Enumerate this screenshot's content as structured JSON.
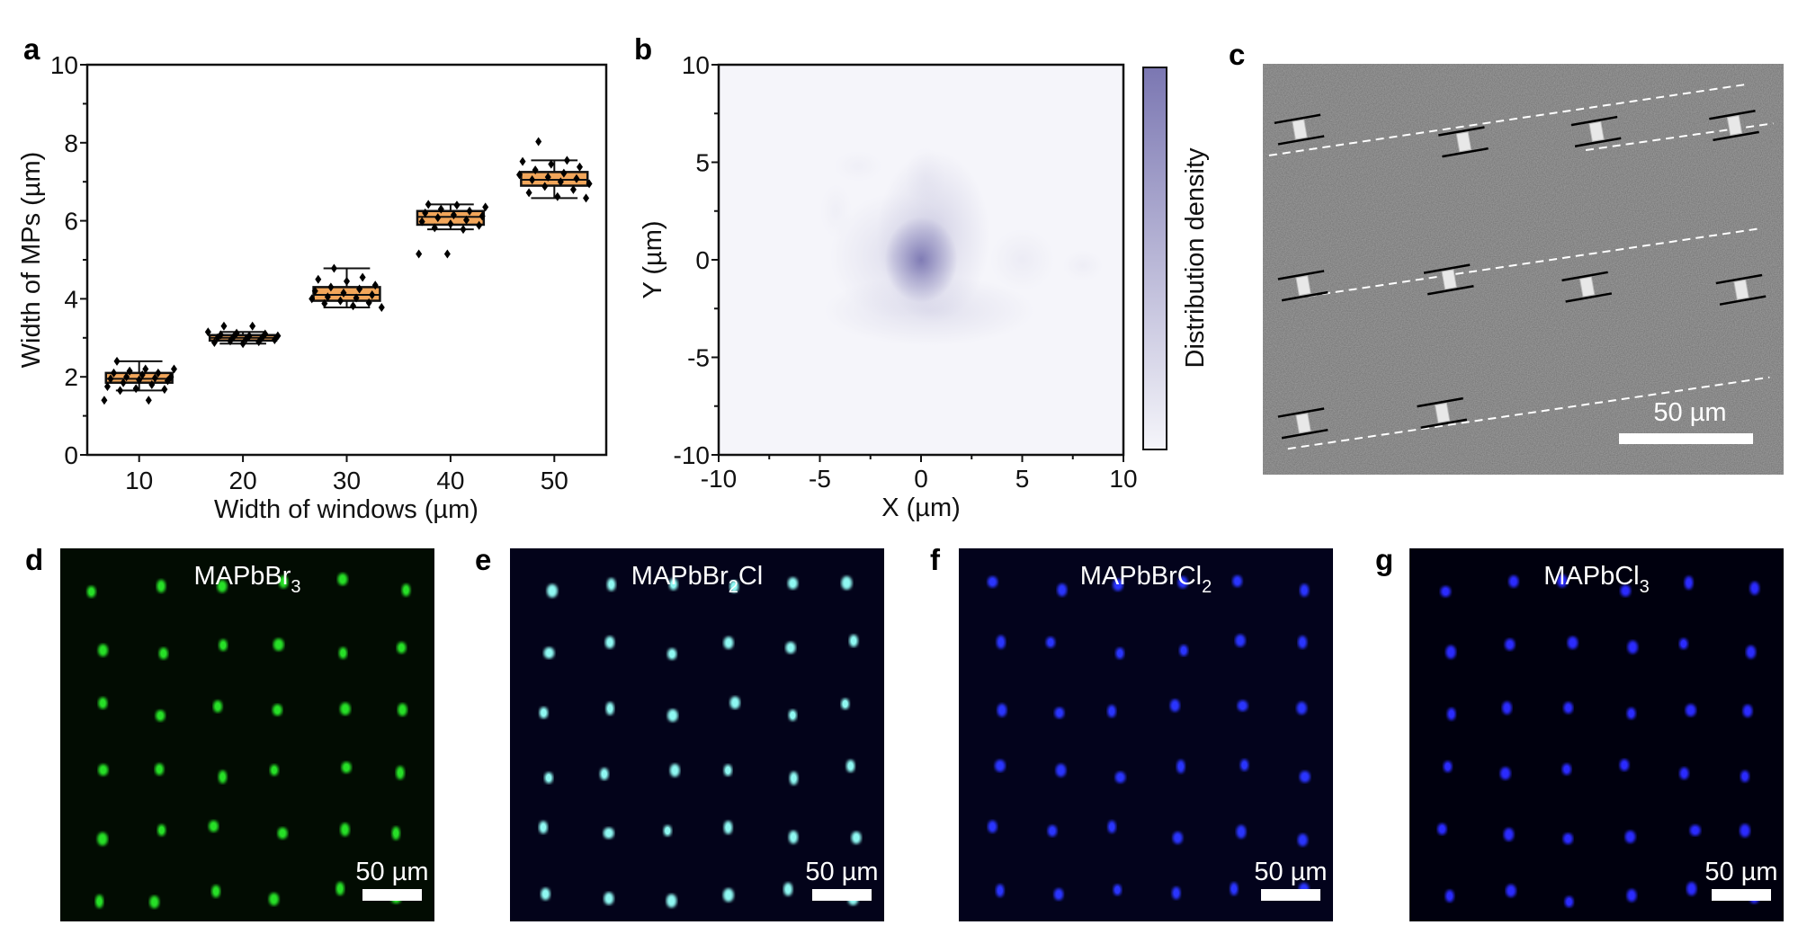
{
  "panels": {
    "a": {
      "letter": "a"
    },
    "b": {
      "letter": "b"
    },
    "c": {
      "letter": "c",
      "scale_bar": "50 µm"
    },
    "d": {
      "letter": "d",
      "label": {
        "base": "MAPbBr",
        "sub": "3",
        "tail": ""
      },
      "scale_bar": "50 µm",
      "bg": "#020c02",
      "dot": "#27e027"
    },
    "e": {
      "letter": "e",
      "label": {
        "base": "MAPbBr",
        "sub": "2",
        "tail": "Cl"
      },
      "scale_bar": "50 µm",
      "bg": "#03031a",
      "dot": "#8ff8f2"
    },
    "f": {
      "letter": "f",
      "label": {
        "base": "MAPbBrCl",
        "sub": "2",
        "tail": ""
      },
      "scale_bar": "50 µm",
      "bg": "#03031c",
      "dot": "#2a35ff"
    },
    "g": {
      "letter": "g",
      "label": {
        "base": "MAPbCl",
        "sub": "3",
        "tail": ""
      },
      "scale_bar": "50 µm",
      "bg": "#00000e",
      "dot": "#2b2bff"
    }
  },
  "chart_data": [
    {
      "type": "box",
      "xlabel": "Width of windows (µm)",
      "ylabel": "Width of MPs (µm)",
      "xlim": [
        5,
        55
      ],
      "ylim": [
        0,
        10
      ],
      "xticks": [
        "10",
        "20",
        "30",
        "40",
        "50"
      ],
      "yticks": [
        "0",
        "2",
        "4",
        "6",
        "8",
        "10"
      ],
      "box_color": "#f2a65a",
      "categories": [
        10,
        20,
        30,
        40,
        50
      ],
      "boxes": [
        {
          "x": 10,
          "whisker_low": 1.65,
          "q1": 1.85,
          "median": 1.95,
          "q3": 2.1,
          "whisker_high": 2.4,
          "points": [
            1.4,
            1.4,
            1.65,
            1.68,
            1.7,
            1.75,
            1.8,
            1.85,
            1.9,
            1.92,
            1.95,
            1.97,
            2.0,
            2.0,
            2.05,
            2.1,
            2.1,
            2.15,
            2.2,
            2.2,
            2.4
          ]
        },
        {
          "x": 20,
          "whisker_low": 2.85,
          "q1": 2.93,
          "median": 3.0,
          "q3": 3.07,
          "whisker_high": 3.15,
          "points": [
            2.85,
            2.88,
            2.9,
            2.92,
            2.95,
            2.97,
            3.0,
            3.0,
            3.02,
            3.05,
            3.05,
            3.08,
            3.1,
            3.12,
            3.15,
            3.3,
            3.3
          ]
        },
        {
          "x": 30,
          "whisker_low": 3.78,
          "q1": 3.95,
          "median": 4.1,
          "q3": 4.3,
          "whisker_high": 4.78,
          "points": [
            3.78,
            3.82,
            3.88,
            3.9,
            3.95,
            4.0,
            4.02,
            4.05,
            4.1,
            4.15,
            4.2,
            4.25,
            4.3,
            4.35,
            4.45,
            4.5,
            4.55,
            4.78
          ]
        },
        {
          "x": 40,
          "whisker_low": 5.78,
          "q1": 5.9,
          "median": 6.1,
          "q3": 6.25,
          "whisker_high": 6.42,
          "points": [
            5.15,
            5.15,
            5.78,
            5.82,
            5.88,
            5.92,
            5.98,
            6.02,
            6.08,
            6.12,
            6.15,
            6.2,
            6.25,
            6.3,
            6.35,
            6.4,
            6.42
          ]
        },
        {
          "x": 50,
          "whisker_low": 6.58,
          "q1": 6.9,
          "median": 7.05,
          "q3": 7.25,
          "whisker_high": 7.55,
          "points": [
            6.58,
            6.62,
            6.72,
            6.8,
            6.88,
            6.95,
            7.0,
            7.05,
            7.08,
            7.12,
            7.18,
            7.22,
            7.3,
            7.38,
            7.45,
            7.52,
            7.55,
            8.03
          ]
        }
      ]
    },
    {
      "type": "heatmap",
      "xlabel": "X (µm)",
      "ylabel": "Y (µm)",
      "colorbar_label": "Distribution density",
      "xlim": [
        -10,
        10
      ],
      "ylim": [
        -10,
        10
      ],
      "xticks": [
        "-10",
        "-5",
        "0",
        "5",
        "10"
      ],
      "yticks": [
        "-10",
        "-5",
        "0",
        "5",
        "10"
      ],
      "color_low": "#f5f5fa",
      "color_high": "#7b77b2",
      "density_peaks": [
        {
          "x": 0,
          "y": 0,
          "sx": 0.9,
          "sy": 1.1,
          "level": 1.0
        },
        {
          "x": 0.6,
          "y": 1.2,
          "sx": 1.4,
          "sy": 2.2,
          "level": 0.3
        },
        {
          "x": 0.4,
          "y": -2.6,
          "sx": 2.6,
          "sy": 0.9,
          "level": 0.18
        },
        {
          "x": -1.3,
          "y": 0.2,
          "sx": 1.6,
          "sy": 1.6,
          "level": 0.18
        },
        {
          "x": 5.0,
          "y": 0.0,
          "sx": 0.8,
          "sy": 0.8,
          "level": 0.08
        },
        {
          "x": 8.0,
          "y": -0.3,
          "sx": 0.5,
          "sy": 0.4,
          "level": 0.06
        },
        {
          "x": -3.1,
          "y": 4.8,
          "sx": 0.6,
          "sy": 0.4,
          "level": 0.05
        },
        {
          "x": 0.2,
          "y": 4.2,
          "sx": 0.5,
          "sy": 0.8,
          "level": 0.05
        },
        {
          "x": -4.2,
          "y": 2.5,
          "sx": 0.4,
          "sy": 0.7,
          "level": 0.05
        }
      ]
    }
  ]
}
